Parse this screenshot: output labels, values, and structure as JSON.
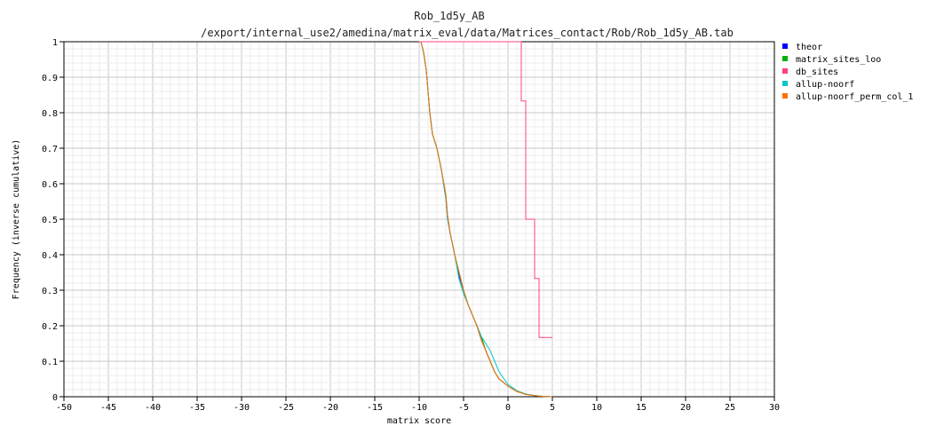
{
  "chart_data": {
    "type": "line",
    "title": "Rob_1d5y_AB",
    "subtitle": "/export/internal_use2/amedina/matrix_eval/data/Matrices_contact/Rob/Rob_1d5y_AB.tab",
    "xlabel": "matrix score",
    "ylabel": "Frequency (inverse cumulative)",
    "xlim": [
      -50,
      30
    ],
    "ylim": [
      0,
      1
    ],
    "x_ticks": [
      "-50",
      "-45",
      "-40",
      "-35",
      "-30",
      "-25",
      "-20",
      "-15",
      "-10",
      "-5",
      "0",
      "5",
      "10",
      "15",
      "20",
      "25",
      "30"
    ],
    "y_ticks": [
      "0",
      "0.1",
      "0.2",
      "0.3",
      "0.4",
      "0.5",
      "0.6",
      "0.7",
      "0.8",
      "0.9",
      "1"
    ],
    "grid": true,
    "legend_position": "right",
    "series": [
      {
        "name": "theor",
        "color": "#0000ff",
        "step": false,
        "points": [
          [
            -9.8,
            1
          ],
          [
            -9.5,
            0.97
          ],
          [
            -9.2,
            0.92
          ],
          [
            -9,
            0.86
          ],
          [
            -8.8,
            0.8
          ],
          [
            -8.5,
            0.74
          ],
          [
            -8,
            0.7
          ],
          [
            -7.5,
            0.64
          ],
          [
            -7,
            0.56
          ],
          [
            -6.8,
            0.5
          ],
          [
            -6.5,
            0.46
          ],
          [
            -6,
            0.4
          ],
          [
            -5.5,
            0.34
          ],
          [
            -5,
            0.3
          ],
          [
            -4.5,
            0.26
          ],
          [
            -4,
            0.23
          ],
          [
            -3.5,
            0.2
          ],
          [
            -3,
            0.16
          ],
          [
            -2.5,
            0.13
          ],
          [
            -2,
            0.1
          ],
          [
            -1.5,
            0.07
          ],
          [
            -1,
            0.05
          ],
          [
            0,
            0.03
          ],
          [
            1,
            0.015
          ],
          [
            2,
            0.007
          ],
          [
            3,
            0.003
          ],
          [
            4,
            0.001
          ],
          [
            5,
            0
          ]
        ]
      },
      {
        "name": "matrix_sites_loo",
        "color": "#00b000",
        "step": false,
        "points": [
          [
            -9.8,
            1
          ],
          [
            -9.5,
            0.97
          ],
          [
            -9.2,
            0.92
          ],
          [
            -9,
            0.86
          ],
          [
            -8.8,
            0.8
          ],
          [
            -8.5,
            0.74
          ],
          [
            -8,
            0.7
          ],
          [
            -7.5,
            0.64
          ],
          [
            -7,
            0.57
          ],
          [
            -6.8,
            0.51
          ],
          [
            -6.5,
            0.46
          ],
          [
            -6,
            0.4
          ],
          [
            -5.5,
            0.35
          ],
          [
            -5,
            0.3
          ],
          [
            -4.5,
            0.26
          ],
          [
            -4,
            0.23
          ],
          [
            -3.5,
            0.2
          ],
          [
            -3,
            0.17
          ],
          [
            -2.5,
            0.13
          ],
          [
            -2,
            0.1
          ],
          [
            -1.5,
            0.07
          ],
          [
            -1,
            0.05
          ],
          [
            0,
            0.03
          ],
          [
            1,
            0.015
          ],
          [
            2,
            0.007
          ],
          [
            3,
            0.003
          ],
          [
            4,
            0.001
          ],
          [
            5,
            0
          ]
        ]
      },
      {
        "name": "db_sites",
        "color": "#ff4080",
        "step": true,
        "points": [
          [
            -10,
            1
          ],
          [
            1.5,
            1
          ],
          [
            1.5,
            0.833
          ],
          [
            2,
            0.833
          ],
          [
            2,
            0.5
          ],
          [
            3,
            0.5
          ],
          [
            3,
            0.333
          ],
          [
            3.5,
            0.333
          ],
          [
            3.5,
            0.167
          ],
          [
            5,
            0.167
          ]
        ]
      },
      {
        "name": "allup-noorf",
        "color": "#00c8c8",
        "step": false,
        "points": [
          [
            -9.8,
            1
          ],
          [
            -9.5,
            0.97
          ],
          [
            -9.2,
            0.92
          ],
          [
            -9,
            0.86
          ],
          [
            -8.8,
            0.8
          ],
          [
            -8.5,
            0.74
          ],
          [
            -8,
            0.7
          ],
          [
            -7.5,
            0.64
          ],
          [
            -7,
            0.56
          ],
          [
            -6.8,
            0.5
          ],
          [
            -6.5,
            0.46
          ],
          [
            -6,
            0.4
          ],
          [
            -5.5,
            0.33
          ],
          [
            -5,
            0.29
          ],
          [
            -4.5,
            0.26
          ],
          [
            -4,
            0.23
          ],
          [
            -3.5,
            0.2
          ],
          [
            -3,
            0.17
          ],
          [
            -2.5,
            0.15
          ],
          [
            -2,
            0.13
          ],
          [
            -1.5,
            0.1
          ],
          [
            -1,
            0.07
          ],
          [
            0,
            0.035
          ],
          [
            1,
            0.017
          ],
          [
            2,
            0.008
          ],
          [
            3,
            0.003
          ],
          [
            4,
            0.001
          ],
          [
            5,
            0
          ]
        ]
      },
      {
        "name": "allup-noorf_perm_col_1",
        "color": "#ff7000",
        "step": false,
        "points": [
          [
            -9.8,
            1
          ],
          [
            -9.5,
            0.97
          ],
          [
            -9.2,
            0.92
          ],
          [
            -9,
            0.86
          ],
          [
            -8.8,
            0.8
          ],
          [
            -8.5,
            0.74
          ],
          [
            -8,
            0.7
          ],
          [
            -7.5,
            0.64
          ],
          [
            -7,
            0.57
          ],
          [
            -6.8,
            0.51
          ],
          [
            -6.5,
            0.46
          ],
          [
            -6,
            0.4
          ],
          [
            -5.5,
            0.35
          ],
          [
            -5,
            0.3
          ],
          [
            -4.5,
            0.26
          ],
          [
            -4,
            0.23
          ],
          [
            -3.5,
            0.2
          ],
          [
            -3,
            0.16
          ],
          [
            -2.5,
            0.13
          ],
          [
            -2,
            0.1
          ],
          [
            -1.5,
            0.07
          ],
          [
            -1,
            0.05
          ],
          [
            0,
            0.03
          ],
          [
            1,
            0.015
          ],
          [
            2,
            0.007
          ],
          [
            3,
            0.003
          ],
          [
            4,
            0.001
          ],
          [
            5,
            0
          ]
        ]
      }
    ]
  }
}
